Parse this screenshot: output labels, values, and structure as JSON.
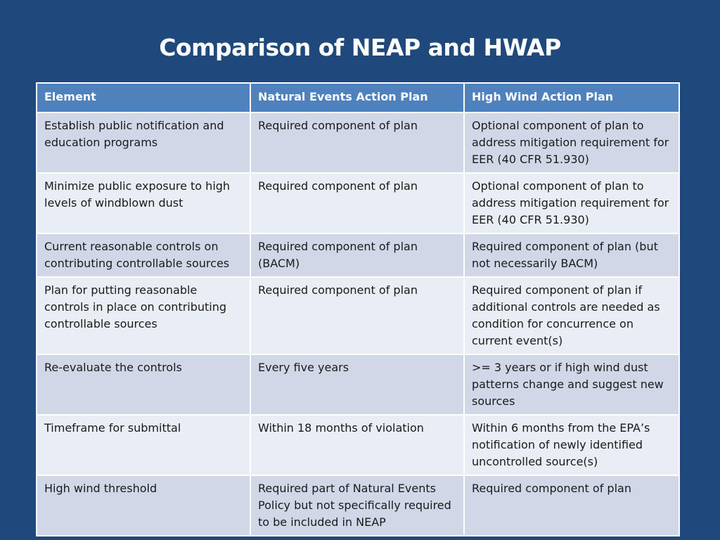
{
  "slide": {
    "title": "Comparison of NEAP and HWAP"
  },
  "table": {
    "headers": [
      "Element",
      "Natural Events Action Plan",
      "High Wind Action Plan"
    ],
    "rows": [
      [
        "Establish public notification and education programs",
        "Required component of plan",
        "Optional component of plan to address mitigation requirement for EER (40 CFR 51.930)"
      ],
      [
        "Minimize public exposure to high levels of windblown dust",
        "Required component of plan",
        "Optional component of plan to address mitigation requirement for EER (40 CFR 51.930)"
      ],
      [
        "Current reasonable controls on contributing controllable sources",
        "Required component of plan (BACM)",
        "Required component of plan (but not necessarily BACM)"
      ],
      [
        "Plan for putting reasonable controls in place on contributing controllable sources",
        "Required component of plan",
        "Required component of plan if additional controls are needed as condition for concurrence on current event(s)"
      ],
      [
        "Re-evaluate the controls",
        "Every five years",
        ">= 3 years or if high wind dust patterns change and suggest new sources"
      ],
      [
        "Timeframe for submittal",
        "Within 18 months of violation",
        "Within 6 months from the EPA’s notification of newly identified uncontrolled source(s)"
      ],
      [
        "High wind threshold",
        "Required part of Natural Events Policy but not specifically required to be included in NEAP",
        "Required component of plan"
      ]
    ]
  }
}
